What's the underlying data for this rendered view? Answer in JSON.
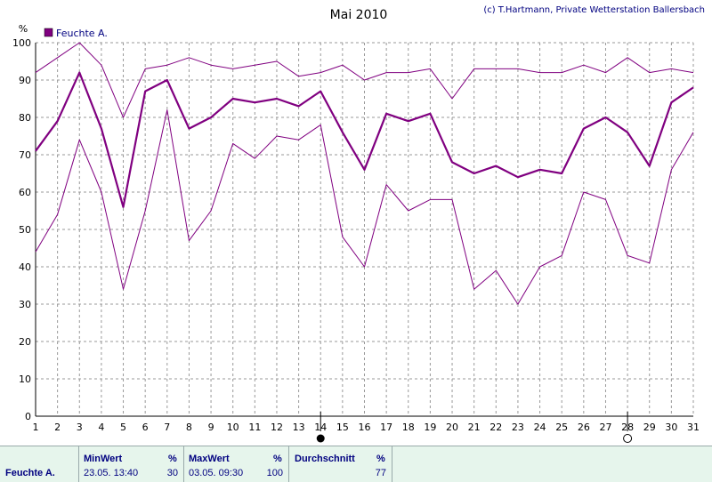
{
  "header": {
    "title": "Mai 2010",
    "copyright": "(c) T.Hartmann, Private Wetterstation Ballersbach"
  },
  "colors": {
    "series": "#800080",
    "grid": "#999999",
    "stats_bg": "#e6f5ec",
    "text_blue": "#000080"
  },
  "markers": {
    "full_moon_day": 14,
    "new_moon_day": 28
  },
  "chart_data": {
    "type": "line",
    "title": "Mai 2010",
    "ylabel": "%",
    "xlabel": "",
    "ylim": [
      0,
      100
    ],
    "x": [
      1,
      2,
      3,
      4,
      5,
      6,
      7,
      8,
      9,
      10,
      11,
      12,
      13,
      14,
      15,
      16,
      17,
      18,
      19,
      20,
      21,
      22,
      23,
      24,
      25,
      26,
      27,
      28,
      29,
      30,
      31
    ],
    "yticks": [
      0,
      10,
      20,
      30,
      40,
      50,
      60,
      70,
      80,
      90,
      100
    ],
    "grid": true,
    "legend": "top-left",
    "series": [
      {
        "name": "Feuchte A.",
        "role": "mean",
        "values": [
          71,
          79,
          92,
          77,
          56,
          87,
          90,
          77,
          80,
          85,
          84,
          85,
          83,
          87,
          76,
          66,
          81,
          79,
          81,
          68,
          65,
          67,
          64,
          66,
          65,
          77,
          80,
          76,
          67,
          84,
          88
        ]
      },
      {
        "role": "max",
        "values": [
          92,
          96,
          100,
          94,
          80,
          93,
          94,
          96,
          94,
          93,
          94,
          95,
          91,
          92,
          94,
          90,
          92,
          92,
          93,
          85,
          93,
          93,
          93,
          92,
          92,
          94,
          92,
          96,
          92,
          93,
          92
        ]
      },
      {
        "role": "min",
        "values": [
          44,
          54,
          74,
          60,
          34,
          55,
          82,
          47,
          55,
          73,
          69,
          75,
          74,
          78,
          48,
          40,
          62,
          55,
          58,
          58,
          34,
          39,
          30,
          40,
          43,
          60,
          58,
          43,
          41,
          66,
          76
        ]
      }
    ]
  },
  "stats": {
    "row_label": "Feuchte A.",
    "min": {
      "header": "MinWert",
      "unit": "%",
      "when": "23.05.  13:40",
      "value": "30"
    },
    "max": {
      "header": "MaxWert",
      "unit": "%",
      "when": "03.05.  09:30",
      "value": "100"
    },
    "avg": {
      "header": "Durchschnitt",
      "unit": "%",
      "value": "77"
    }
  }
}
